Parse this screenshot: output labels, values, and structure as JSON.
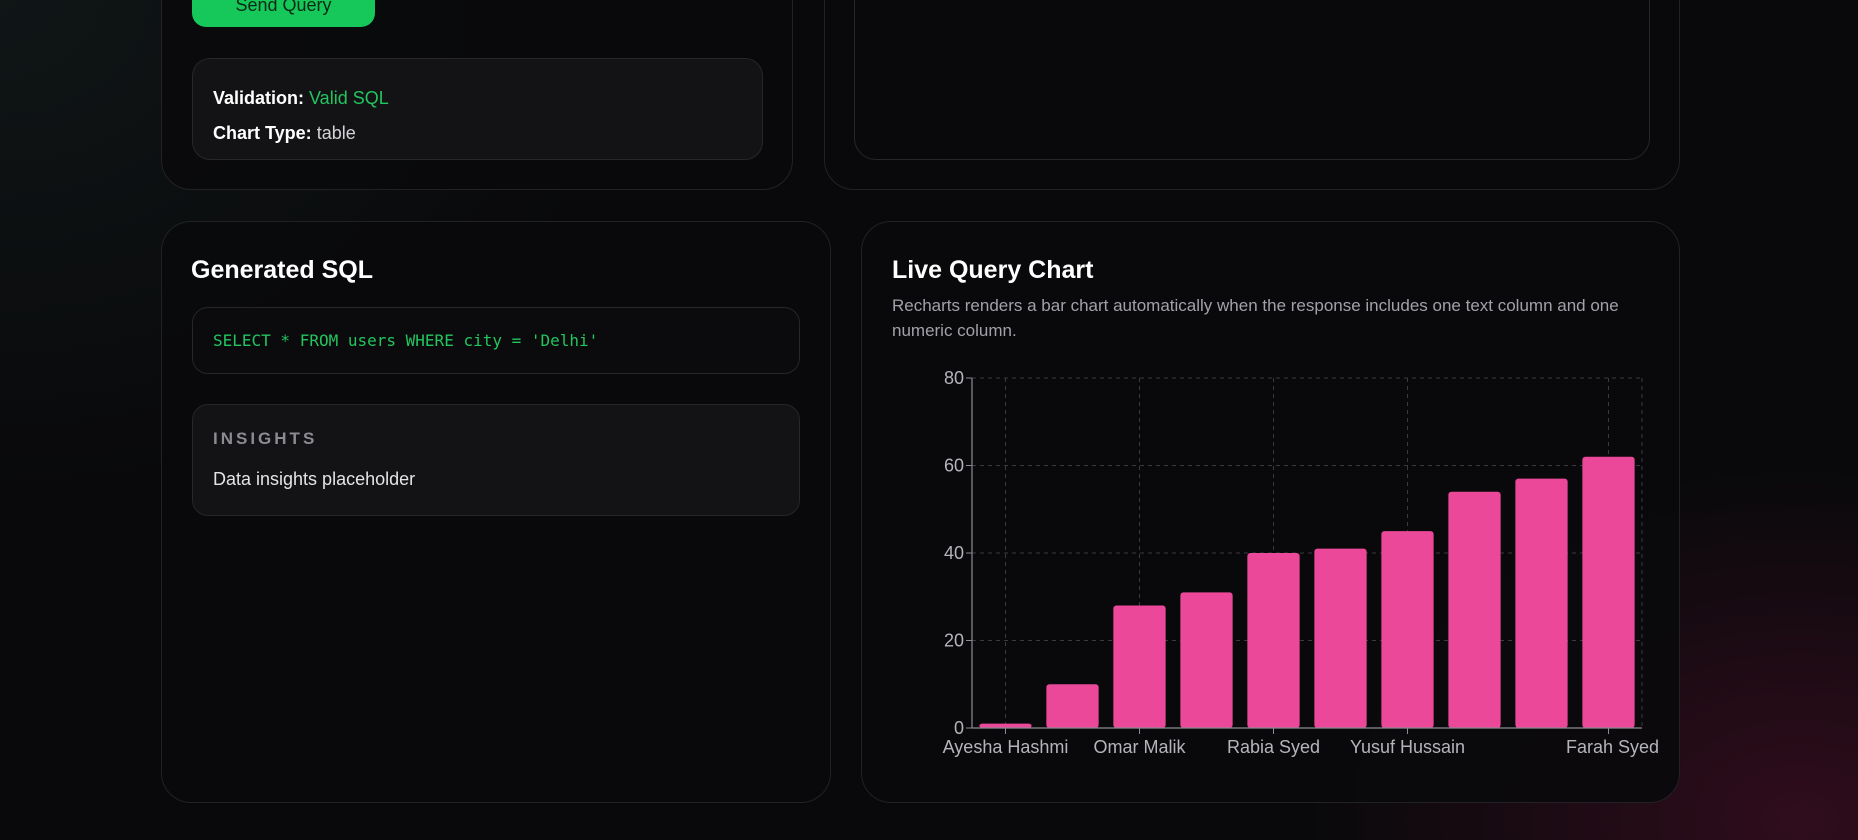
{
  "query": {
    "send_label": "Send Query",
    "validation_label": "Validation:",
    "validation_value": "Valid SQL",
    "chart_type_label": "Chart Type:",
    "chart_type_value": "table"
  },
  "sql": {
    "title": "Generated SQL",
    "code": "SELECT * FROM users WHERE city = 'Delhi'"
  },
  "insights": {
    "title": "INSIGHTS",
    "text": "Data insights placeholder"
  },
  "live_chart": {
    "title": "Live Query Chart",
    "description": "Recharts renders a bar chart automatically when the response includes one text column and one numeric column."
  },
  "colors": {
    "accent_green": "#22c55e",
    "send_button": "#16c75a",
    "bar": "#ec4899"
  },
  "chart_data": {
    "type": "bar",
    "categories": [
      "Ayesha Hashmi",
      "",
      "Omar Malik",
      "",
      "Rabia Syed",
      "",
      "Yusuf Hussain",
      "",
      "",
      "Farah Syed"
    ],
    "values": [
      1,
      10,
      28,
      31,
      40,
      41,
      45,
      54,
      57,
      62
    ],
    "ylim": [
      0,
      80
    ],
    "yticks": [
      0,
      20,
      40,
      60,
      80
    ],
    "grid": true,
    "color": "#ec4899"
  }
}
